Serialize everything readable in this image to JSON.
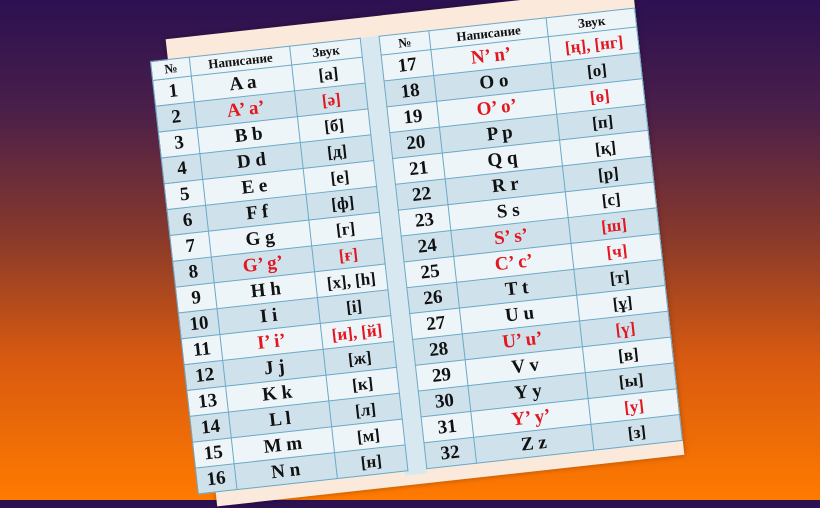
{
  "headers": {
    "num": "№",
    "spelling": "Написание",
    "sound": "Звук"
  },
  "colors": {
    "highlight": "#e3171f",
    "row_dark": "#cfe2ec",
    "row_light": "#eef5f9"
  },
  "rows": [
    {
      "n": "1",
      "l": "A a",
      "s": "[а]",
      "red": false
    },
    {
      "n": "2",
      "l": "A’ a’",
      "s": "[ә]",
      "red": true
    },
    {
      "n": "3",
      "l": "B b",
      "s": "[б]",
      "red": false
    },
    {
      "n": "4",
      "l": "D d",
      "s": "[д]",
      "red": false
    },
    {
      "n": "5",
      "l": "E e",
      "s": "[е]",
      "red": false
    },
    {
      "n": "6",
      "l": "F f",
      "s": "[ф]",
      "red": false
    },
    {
      "n": "7",
      "l": "G g",
      "s": "[г]",
      "red": false
    },
    {
      "n": "8",
      "l": "G’ g’",
      "s": "[ғ]",
      "red": true
    },
    {
      "n": "9",
      "l": "H h",
      "s": "[х], [h]",
      "red": false
    },
    {
      "n": "10",
      "l": "I i",
      "s": "[і]",
      "red": false
    },
    {
      "n": "11",
      "l": "I’ i’",
      "s": "[и], [й]",
      "red": true
    },
    {
      "n": "12",
      "l": "J j",
      "s": "[ж]",
      "red": false
    },
    {
      "n": "13",
      "l": "K k",
      "s": "[к]",
      "red": false
    },
    {
      "n": "14",
      "l": "L l",
      "s": "[л]",
      "red": false
    },
    {
      "n": "15",
      "l": "M m",
      "s": "[м]",
      "red": false
    },
    {
      "n": "16",
      "l": "N n",
      "s": "[н]",
      "red": false
    },
    {
      "n": "17",
      "l": "N’ n’",
      "s": "[ң], [нг]",
      "red": true
    },
    {
      "n": "18",
      "l": "O o",
      "s": "[о]",
      "red": false
    },
    {
      "n": "19",
      "l": "O’ o’",
      "s": "[ө]",
      "red": true
    },
    {
      "n": "20",
      "l": "P p",
      "s": "[п]",
      "red": false
    },
    {
      "n": "21",
      "l": "Q q",
      "s": "[қ]",
      "red": false
    },
    {
      "n": "22",
      "l": "R r",
      "s": "[р]",
      "red": false
    },
    {
      "n": "23",
      "l": "S s",
      "s": "[с]",
      "red": false
    },
    {
      "n": "24",
      "l": "S’ s’",
      "s": "[ш]",
      "red": true
    },
    {
      "n": "25",
      "l": "C’ c’",
      "s": "[ч]",
      "red": true
    },
    {
      "n": "26",
      "l": "T t",
      "s": "[т]",
      "red": false
    },
    {
      "n": "27",
      "l": "U u",
      "s": "[ұ]",
      "red": false
    },
    {
      "n": "28",
      "l": "U’ u’",
      "s": "[ү]",
      "red": true
    },
    {
      "n": "29",
      "l": "V v",
      "s": "[в]",
      "red": false
    },
    {
      "n": "30",
      "l": "Y y",
      "s": "[ы]",
      "red": false
    },
    {
      "n": "31",
      "l": "Y’ y’",
      "s": "[у]",
      "red": true
    },
    {
      "n": "32",
      "l": "Z z",
      "s": "[з]",
      "red": false
    }
  ]
}
